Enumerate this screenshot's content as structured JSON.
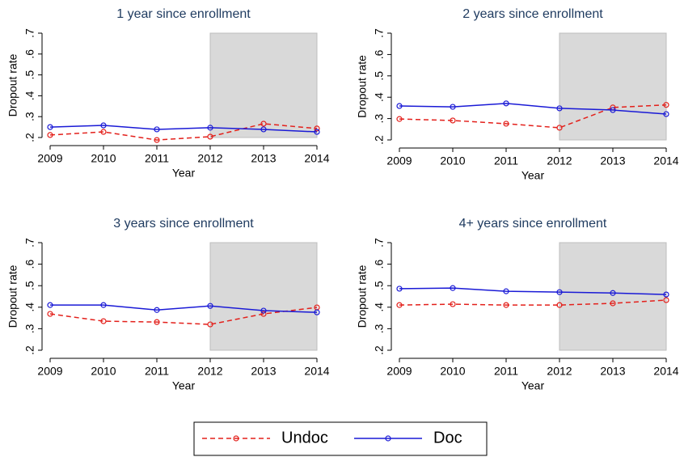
{
  "chart_data": [
    {
      "type": "line",
      "title": "1 year since enrollment",
      "xlabel": "Year",
      "ylabel": "Dropout rate",
      "x": [
        2009,
        2010,
        2011,
        2012,
        2013,
        2014
      ],
      "xlim": [
        2009,
        2014
      ],
      "xticks": [
        2009,
        2010,
        2011,
        2012,
        2013,
        2014
      ],
      "ylim": [
        0.2,
        0.7
      ],
      "yticks": [
        {
          "value": 0.2,
          "label": ".2"
        },
        {
          "value": 0.3,
          "label": ".3"
        },
        {
          "value": 0.4,
          "label": ".4"
        },
        {
          "value": 0.5,
          "label": ".5"
        },
        {
          "value": 0.6,
          "label": ".6"
        },
        {
          "value": 0.7,
          "label": ".7"
        }
      ],
      "shaded_x": [
        2012,
        2014
      ],
      "legend": "bottom",
      "series": [
        {
          "name": "Undoc",
          "color": "#e3201b",
          "dashed": true,
          "values": [
            0.212,
            0.227,
            0.188,
            0.204,
            0.266,
            0.243
          ]
        },
        {
          "name": "Doc",
          "color": "#1a1ad6",
          "dashed": false,
          "values": [
            0.25,
            0.258,
            0.239,
            0.247,
            0.239,
            0.227
          ]
        }
      ]
    },
    {
      "type": "line",
      "title": "2 years since enrollment",
      "xlabel": "Year",
      "ylabel": "Dropout rate",
      "x": [
        2009,
        2010,
        2011,
        2012,
        2013,
        2014
      ],
      "xlim": [
        2009,
        2014
      ],
      "xticks": [
        2009,
        2010,
        2011,
        2012,
        2013,
        2014
      ],
      "ylim": [
        0.2,
        0.7
      ],
      "yticks": [
        {
          "value": 0.2,
          "label": ".2"
        },
        {
          "value": 0.3,
          "label": ".3"
        },
        {
          "value": 0.4,
          "label": ".4"
        },
        {
          "value": 0.5,
          "label": ".5"
        },
        {
          "value": 0.6,
          "label": ".6"
        },
        {
          "value": 0.7,
          "label": ".7"
        }
      ],
      "shaded_x": [
        2012,
        2014
      ],
      "series": [
        {
          "color": "#e3201b",
          "dashed": true,
          "values": [
            0.298,
            0.291,
            0.276,
            0.257,
            0.352,
            0.364
          ]
        },
        {
          "color": "#1a1ad6",
          "dashed": false,
          "values": [
            0.359,
            0.355,
            0.371,
            0.348,
            0.34,
            0.321
          ]
        }
      ]
    },
    {
      "type": "line",
      "title": "3 years since enrollment",
      "xlabel": "Year",
      "ylabel": "Dropout rate",
      "x": [
        2009,
        2010,
        2011,
        2012,
        2013,
        2014
      ],
      "xlim": [
        2009,
        2014
      ],
      "xticks": [
        2009,
        2010,
        2011,
        2012,
        2013,
        2014
      ],
      "ylim": [
        0.2,
        0.7
      ],
      "yticks": [
        {
          "value": 0.2,
          "label": ".2"
        },
        {
          "value": 0.3,
          "label": ".3"
        },
        {
          "value": 0.4,
          "label": ".4"
        },
        {
          "value": 0.5,
          "label": ".5"
        },
        {
          "value": 0.6,
          "label": ".6"
        },
        {
          "value": 0.7,
          "label": ".7"
        }
      ],
      "shaded_x": [
        2012,
        2014
      ],
      "series": [
        {
          "color": "#e3201b",
          "dashed": true,
          "values": [
            0.369,
            0.335,
            0.331,
            0.32,
            0.369,
            0.399
          ]
        },
        {
          "color": "#1a1ad6",
          "dashed": false,
          "values": [
            0.41,
            0.41,
            0.387,
            0.406,
            0.384,
            0.376
          ]
        }
      ]
    },
    {
      "type": "line",
      "title": "4+ years since enrollment",
      "xlabel": "Year",
      "ylabel": "Dropout rate",
      "x": [
        2009,
        2010,
        2011,
        2012,
        2013,
        2014
      ],
      "xlim": [
        2009,
        2014
      ],
      "xticks": [
        2009,
        2010,
        2011,
        2012,
        2013,
        2014
      ],
      "ylim": [
        0.2,
        0.7
      ],
      "yticks": [
        {
          "value": 0.2,
          "label": ".2"
        },
        {
          "value": 0.3,
          "label": ".3"
        },
        {
          "value": 0.4,
          "label": ".4"
        },
        {
          "value": 0.5,
          "label": ".5"
        },
        {
          "value": 0.6,
          "label": ".6"
        },
        {
          "value": 0.7,
          "label": ".7"
        }
      ],
      "shaded_x": [
        2012,
        2014
      ],
      "series": [
        {
          "color": "#e3201b",
          "dashed": true,
          "values": [
            0.41,
            0.414,
            0.41,
            0.41,
            0.418,
            0.433
          ]
        },
        {
          "color": "#1a1ad6",
          "dashed": false,
          "values": [
            0.486,
            0.489,
            0.474,
            0.47,
            0.466,
            0.459
          ]
        }
      ]
    }
  ]
}
